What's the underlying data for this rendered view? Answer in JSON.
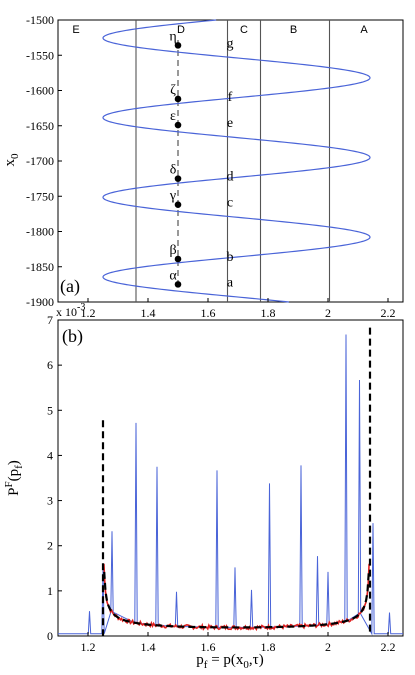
{
  "chart_data": [
    {
      "panel_label": "(a)",
      "type": "line",
      "ylabel": "x",
      "ylabel_sub": "0",
      "xlim": [
        1.1,
        2.25
      ],
      "ylim": [
        -1900,
        -1500
      ],
      "y_reversed": true,
      "xticks": [
        1.2,
        1.4,
        1.6,
        1.8,
        2,
        2.2
      ],
      "xtick_labels": [
        "1.2",
        "1.4",
        "1.6",
        "1.8",
        "2",
        "2.2"
      ],
      "yticks": [
        -1500,
        -1550,
        -1600,
        -1650,
        -1700,
        -1750,
        -1800,
        -1850,
        -1900
      ],
      "ytick_labels": [
        "-1500",
        "-1550",
        "-1600",
        "-1650",
        "-1700",
        "-1750",
        "-1800",
        "-1850",
        "-1900"
      ],
      "curve": {
        "color": "#4a64d8",
        "x_center": 1.695,
        "x_amplitude": 0.445,
        "y_period": 113,
        "y_phase_at_max": -1582,
        "y_range": [
          -1900,
          -1500
        ]
      },
      "regions": [
        {
          "label": "E",
          "x_line": null,
          "x_label": 1.16
        },
        {
          "label": "D",
          "x_line": 1.36,
          "x_label": 1.51
        },
        {
          "label": "C",
          "x_line": 1.665,
          "x_label": 1.72
        },
        {
          "label": "B",
          "x_line": 1.775,
          "x_label": 1.885
        },
        {
          "label": "A",
          "x_line": 2.005,
          "x_label": 2.12
        }
      ],
      "dashed_line_x": 1.5,
      "points": [
        {
          "greek": "η",
          "latin": "g",
          "x": 1.5,
          "y": -1536
        },
        {
          "greek": "ζ",
          "latin": "f",
          "x": 1.5,
          "y": -1612
        },
        {
          "greek": "ε",
          "latin": "e",
          "x": 1.5,
          "y": -1649
        },
        {
          "greek": "δ",
          "latin": "d",
          "x": 1.5,
          "y": -1725
        },
        {
          "greek": "γ",
          "latin": "c",
          "x": 1.5,
          "y": -1762
        },
        {
          "greek": "β",
          "latin": "b",
          "x": 1.5,
          "y": -1839
        },
        {
          "greek": "α",
          "latin": "a",
          "x": 1.5,
          "y": -1875
        }
      ]
    },
    {
      "panel_label": "(b)",
      "type": "line",
      "xlabel_main": "p",
      "xlabel_sub": "f",
      "xlabel_rest": "= p(x",
      "xlabel_sub2": "0",
      "xlabel_end": ",τ)",
      "ylabel_main": "P",
      "ylabel_sup": "F",
      "ylabel_rest": "(p",
      "ylabel_sub": "f",
      "ylabel_end": ")",
      "exponent_label": "x 10",
      "exponent_value": "-3",
      "xlim": [
        1.1,
        2.25
      ],
      "ylim": [
        0,
        7
      ],
      "xticks": [
        1.2,
        1.4,
        1.6,
        1.8,
        2,
        2.2
      ],
      "xtick_labels": [
        "1.2",
        "1.4",
        "1.6",
        "1.8",
        "2",
        "2.2"
      ],
      "yticks": [
        0,
        1,
        2,
        3,
        4,
        5,
        6,
        7
      ],
      "ytick_labels": [
        "0",
        "1",
        "2",
        "3",
        "4",
        "5",
        "6",
        "7"
      ],
      "series": [
        {
          "color": "#4a64d8",
          "kind": "spikes",
          "baseline": 0.05,
          "spikes": [
            {
              "x": 1.205,
              "y": 0.55
            },
            {
              "x": 1.25,
              "y": 1.45
            },
            {
              "x": 1.28,
              "y": 2.32
            },
            {
              "x": 1.36,
              "y": 4.72
            },
            {
              "x": 1.43,
              "y": 3.75
            },
            {
              "x": 1.495,
              "y": 0.98
            },
            {
              "x": 1.63,
              "y": 3.67
            },
            {
              "x": 1.69,
              "y": 1.52
            },
            {
              "x": 1.745,
              "y": 1.02
            },
            {
              "x": 1.805,
              "y": 3.38
            },
            {
              "x": 1.91,
              "y": 3.78
            },
            {
              "x": 1.965,
              "y": 1.77
            },
            {
              "x": 2.0,
              "y": 1.42
            },
            {
              "x": 2.06,
              "y": 6.68
            },
            {
              "x": 2.105,
              "y": 5.67
            },
            {
              "x": 2.15,
              "y": 2.5
            },
            {
              "x": 2.205,
              "y": 0.52
            }
          ]
        },
        {
          "color": "#e02020",
          "kind": "noisy_density",
          "x_min": 1.25,
          "x_max": 2.14
        },
        {
          "color": "#000000",
          "kind": "dashed_density",
          "x_min": 1.25,
          "x_max": 2.14,
          "edge_left_top": 4.78,
          "edge_right_top": 6.83
        }
      ]
    }
  ]
}
